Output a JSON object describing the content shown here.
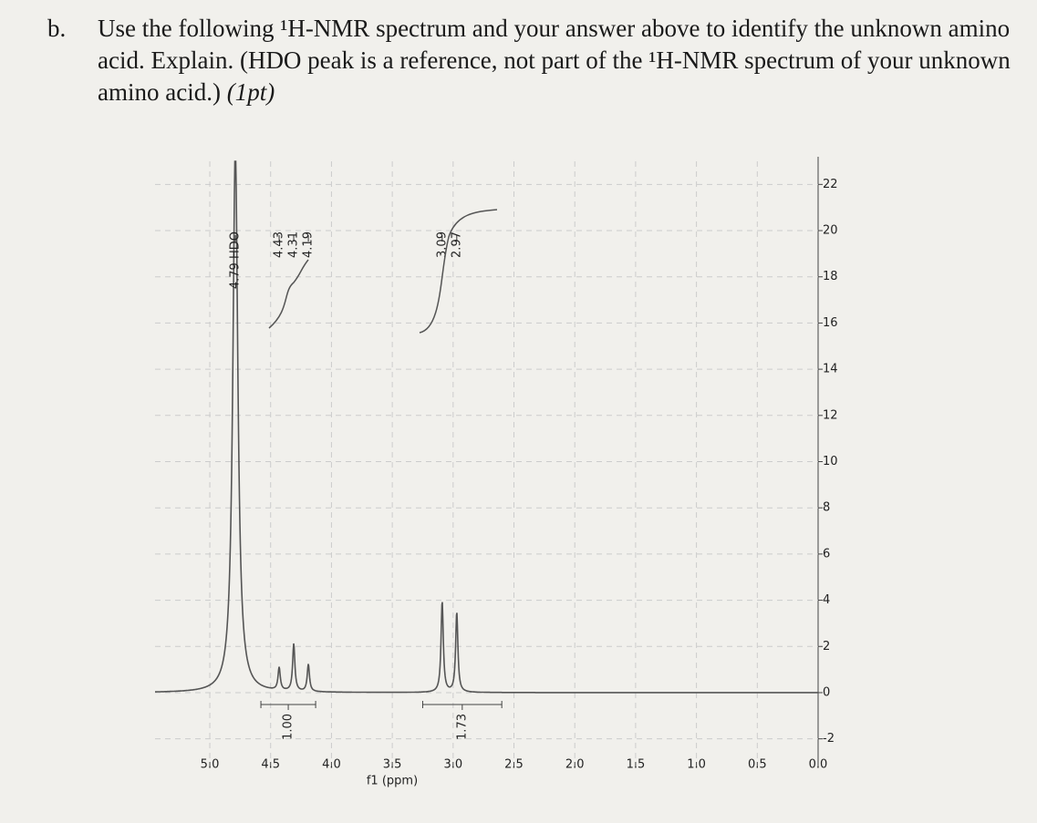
{
  "question": {
    "label": "b.",
    "text": "Use the following ¹H-NMR spectrum and your answer above to identify the unknown amino acid. Explain. (HDO peak is a reference, not part of the ¹H-NMR spectrum of your unknown amino acid.)",
    "points": "(1pt)"
  },
  "chart_data": {
    "type": "nmr",
    "x_label": "f1 (ppm)",
    "xlim": [
      5.45,
      0
    ],
    "xticks": [
      {
        "value": 5,
        "label": "5.0"
      },
      4.5,
      {
        "value": 4,
        "label": "4.0"
      },
      3.5,
      {
        "value": 3,
        "label": "3.0"
      },
      2.5,
      {
        "value": 2,
        "label": "2.0"
      },
      1.5,
      {
        "value": 1,
        "label": "1.0"
      },
      0.5,
      {
        "value": 0,
        "label": "0.0"
      }
    ],
    "y2lim": [
      -3,
      23
    ],
    "y2ticks": [
      -2,
      0,
      2,
      4,
      6,
      8,
      10,
      12,
      14,
      16,
      18,
      20,
      22
    ],
    "peaks": [
      {
        "value": 4.79,
        "label": "4.79 HDO"
      },
      4.43,
      4.31,
      4.19,
      3.09,
      2.97
    ],
    "integrals": [
      {
        "value": 1,
        "label": "1.00",
        "from": 4.58,
        "to": 4.13
      },
      {
        "value": 1.73,
        "from": 3.25,
        "to": 2.6
      }
    ],
    "grid": true,
    "color": "#555555"
  }
}
